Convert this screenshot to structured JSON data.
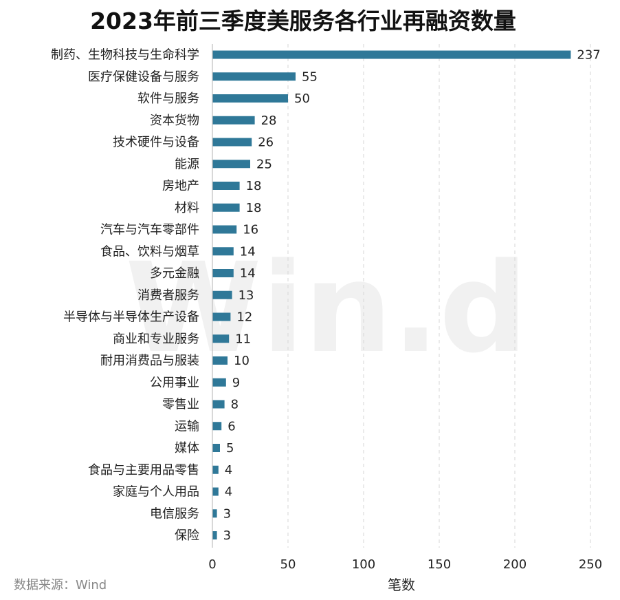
{
  "source_text": "数据来源：Wind",
  "watermark_text": "Win.d",
  "bar_color": "#2f7898",
  "chart_data": {
    "type": "bar",
    "orientation": "horizontal",
    "title": "2023年前三季度美服务各行业再融资数量",
    "xlabel": "笔数",
    "ylabel": "",
    "xlim": [
      0,
      250
    ],
    "xticks": [
      0,
      50,
      100,
      150,
      200,
      250
    ],
    "grid": true,
    "categories": [
      "制药、生物科技与生命科学",
      "医疗保健设备与服务",
      "软件与服务",
      "资本货物",
      "技术硬件与设备",
      "能源",
      "房地产",
      "材料",
      "汽车与汽车零部件",
      "食品、饮料与烟草",
      "多元金融",
      "消费者服务",
      "半导体与半导体生产设备",
      "商业和专业服务",
      "耐用消费品与服装",
      "公用事业",
      "零售业",
      "运输",
      "媒体",
      "食品与主要用品零售",
      "家庭与个人用品",
      "电信服务",
      "保险"
    ],
    "values": [
      237,
      55,
      50,
      28,
      26,
      25,
      18,
      18,
      16,
      14,
      14,
      13,
      12,
      11,
      10,
      9,
      8,
      6,
      5,
      4,
      4,
      3,
      3
    ]
  }
}
